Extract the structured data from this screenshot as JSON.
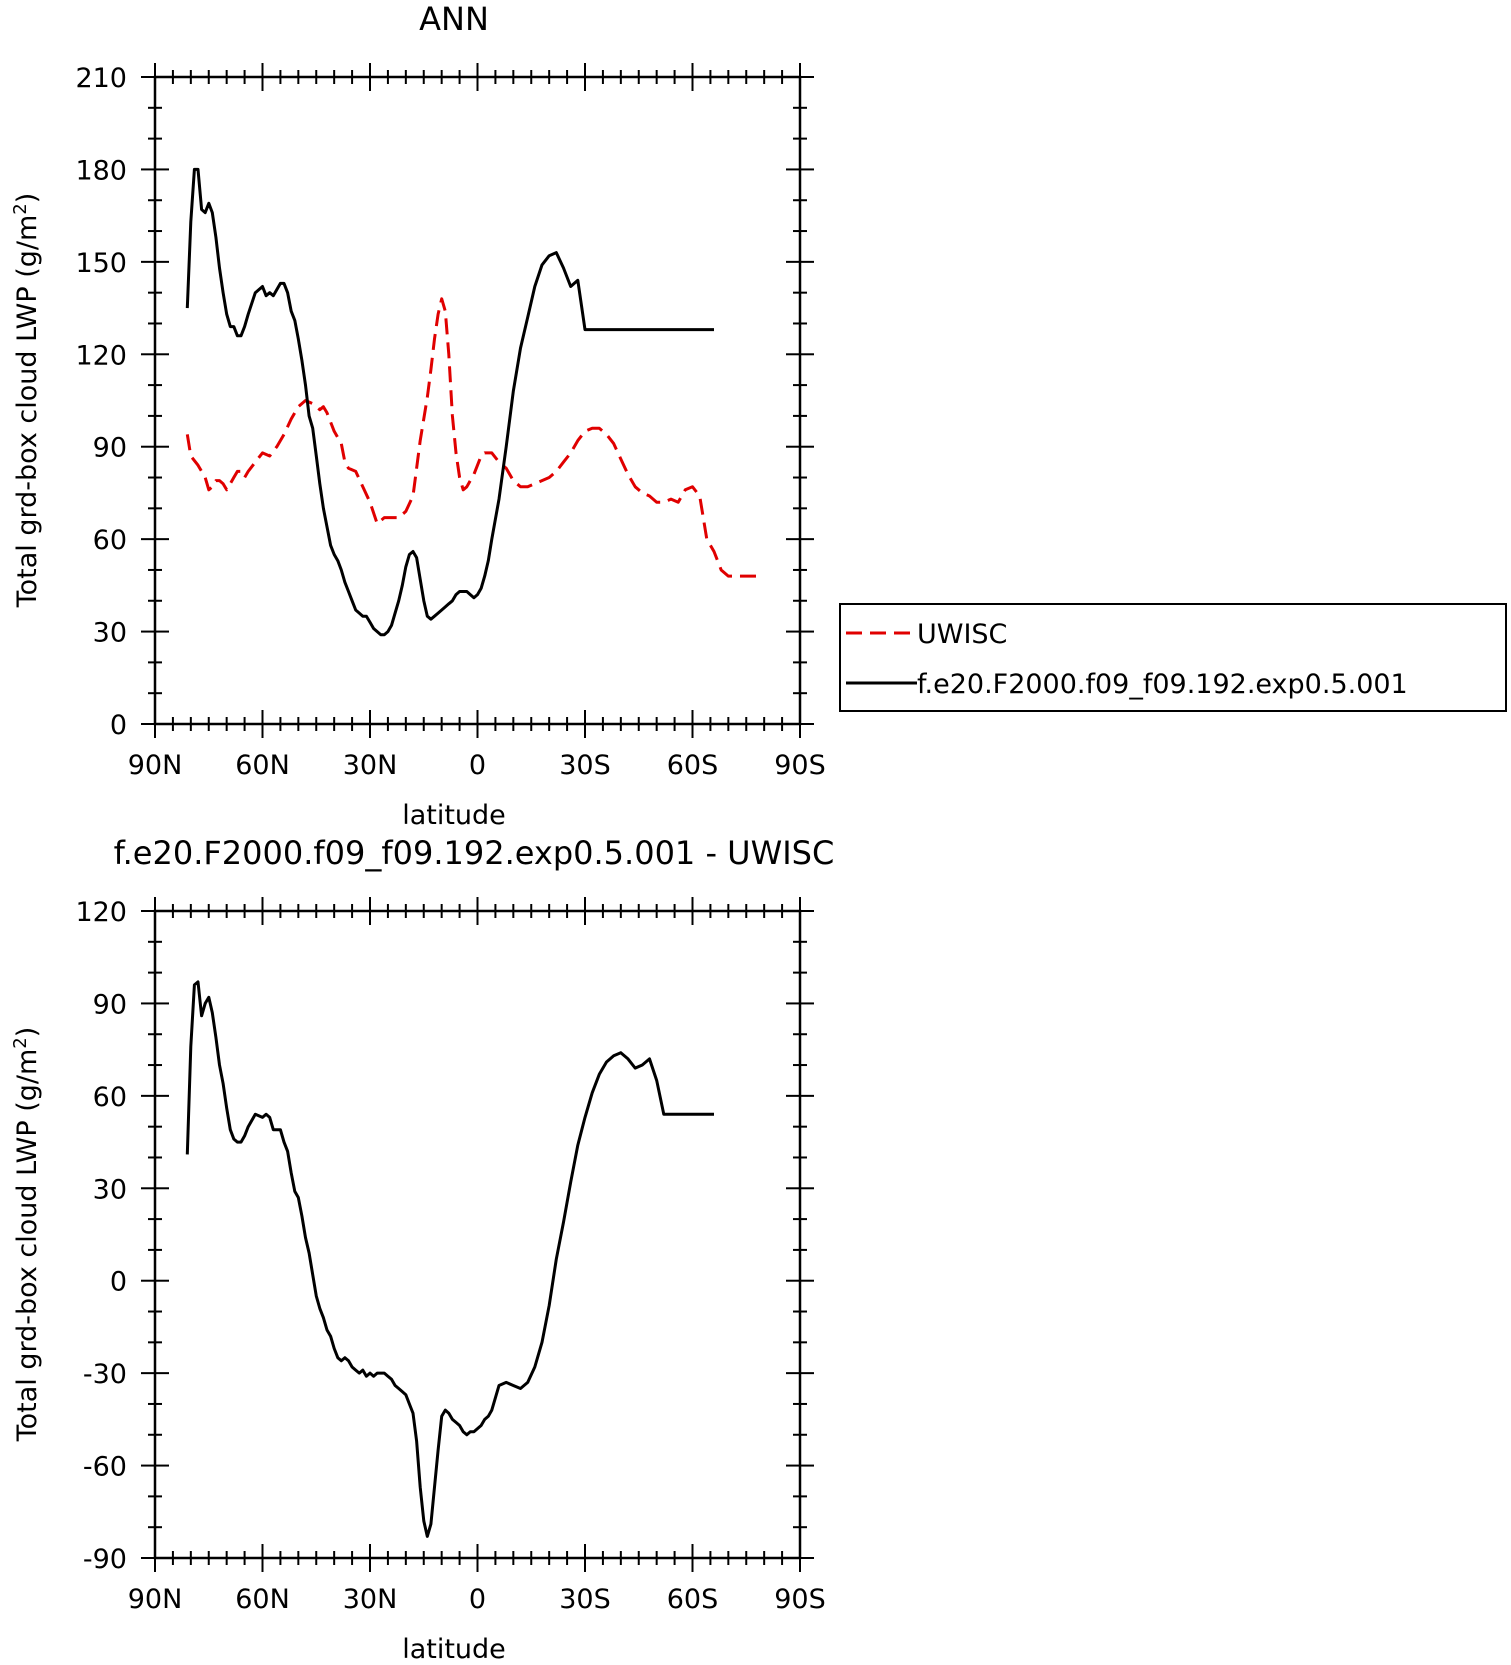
{
  "chart_data": [
    {
      "type": "line",
      "title": "ANN",
      "xlabel": "latitude",
      "ylabel": "Total grd-box cloud LWP (g/m²)",
      "ylabel_main": "Total grd-box cloud LWP (g/m",
      "ylabel_sup": "2",
      "ylabel_close": ")",
      "xlim": [
        90,
        -90
      ],
      "ylim": [
        0,
        210
      ],
      "xticks": [
        90,
        60,
        30,
        0,
        -30,
        -60,
        -90
      ],
      "xtick_labels": [
        "90N",
        "60N",
        "30N",
        "0",
        "30S",
        "60S",
        "90S"
      ],
      "yticks": [
        0,
        30,
        60,
        90,
        120,
        150,
        180,
        210
      ],
      "ytick_labels": [
        "0",
        "30",
        "60",
        "90",
        "120",
        "150",
        "180",
        "210"
      ],
      "legend_position": "right",
      "series": [
        {
          "name": "UWISC",
          "color": "#e00000",
          "style": "dashed",
          "x": [
            81,
            80,
            78,
            76,
            75,
            74,
            73,
            72,
            71,
            70,
            69,
            68,
            67,
            66,
            65,
            64,
            62,
            60,
            58,
            56,
            54,
            52,
            50,
            48,
            46,
            44,
            43,
            42,
            40,
            38,
            37,
            36,
            34,
            32,
            30,
            28,
            26,
            24,
            22,
            20,
            18,
            16,
            14,
            13,
            12,
            11,
            10,
            9,
            8,
            7,
            6,
            5,
            4,
            3,
            2,
            1,
            0,
            -1,
            -2,
            -4,
            -6,
            -8,
            -10,
            -12,
            -14,
            -16,
            -18,
            -20,
            -22,
            -24,
            -26,
            -28,
            -30,
            -32,
            -34,
            -36,
            -38,
            -40,
            -42,
            -44,
            -46,
            -48,
            -50,
            -52,
            -54,
            -56,
            -58,
            -60,
            -62,
            -64,
            -66,
            -68,
            -70,
            -71,
            -72,
            -73,
            -74,
            -75,
            -76,
            -77,
            -78
          ],
          "values": [
            94,
            87,
            84,
            80,
            76,
            77,
            79,
            79,
            78,
            76,
            78,
            80,
            82,
            82,
            80,
            82,
            85,
            88,
            87,
            90,
            94,
            99,
            103,
            105,
            104,
            102,
            103,
            101,
            95,
            91,
            85,
            83,
            82,
            77,
            72,
            65,
            67,
            67,
            67,
            69,
            74,
            92,
            106,
            115,
            125,
            133,
            138,
            134,
            120,
            100,
            88,
            80,
            76,
            77,
            79,
            81,
            84,
            87,
            88,
            88,
            85,
            83,
            79,
            77,
            77,
            78,
            79,
            80,
            82,
            85,
            88,
            92,
            95,
            96,
            96,
            94,
            91,
            86,
            81,
            77,
            75,
            74,
            72,
            72,
            73,
            72,
            76,
            77,
            74,
            60,
            56,
            50,
            48,
            48,
            48,
            48,
            48,
            48,
            48,
            48,
            48
          ]
        },
        {
          "name": "f.e20.F2000.f09_f09.192.exp0.5.001",
          "color": "#000000",
          "style": "solid",
          "x": [
            81,
            80,
            79,
            78,
            77,
            76,
            75,
            74,
            73,
            72,
            71,
            70,
            69,
            68,
            67,
            66,
            65,
            64,
            62,
            60,
            59,
            58,
            57,
            56,
            55,
            54,
            53,
            52,
            51,
            50,
            49,
            48,
            47,
            46,
            45,
            44,
            43,
            42,
            41,
            40,
            39,
            38,
            37,
            36,
            35,
            34,
            33,
            32,
            31,
            30,
            29,
            28,
            27,
            26,
            25,
            24,
            23,
            22,
            21,
            20,
            19,
            18,
            17,
            16,
            15,
            14,
            13,
            12,
            11,
            10,
            9,
            8,
            7,
            6,
            5,
            4,
            3,
            2,
            1,
            0,
            -1,
            -2,
            -3,
            -4,
            -6,
            -8,
            -10,
            -12,
            -14,
            -16,
            -18,
            -20,
            -22,
            -24,
            -26,
            -28,
            -30,
            -32,
            -34,
            -36,
            -38,
            -40,
            -42,
            -44,
            -46,
            -48,
            -50,
            -52,
            -54,
            -56,
            -58,
            -60,
            -62,
            -64,
            -65,
            -66
          ],
          "values": [
            135,
            163,
            180,
            180,
            167,
            166,
            169,
            166,
            158,
            148,
            140,
            133,
            129,
            129,
            126,
            126,
            129,
            133,
            140,
            142,
            139,
            140,
            139,
            141,
            143,
            143,
            140,
            134,
            131,
            125,
            118,
            110,
            100,
            96,
            87,
            78,
            70,
            64,
            58,
            55,
            53,
            50,
            46,
            43,
            40,
            37,
            36,
            35,
            35,
            33,
            31,
            30,
            29,
            29,
            30,
            32,
            36,
            40,
            45,
            51,
            55,
            56,
            54,
            47,
            40,
            35,
            34,
            35,
            36,
            37,
            38,
            39,
            40,
            42,
            43,
            43,
            43,
            42,
            41,
            42,
            44,
            48,
            53,
            60,
            73,
            90,
            108,
            122,
            132,
            142,
            149,
            152,
            153,
            148,
            142,
            144,
            128,
            128,
            128,
            128,
            128,
            128,
            128,
            128,
            128,
            128,
            128,
            128,
            128,
            128,
            128,
            128,
            128,
            128,
            128,
            128
          ]
        }
      ]
    },
    {
      "type": "line",
      "title": "f.e20.F2000.f09_f09.192.exp0.5.001 - UWISC",
      "xlabel": "latitude",
      "ylabel": "Total grd-box cloud LWP (g/m²)",
      "ylabel_main": "Total grd-box cloud LWP (g/m",
      "ylabel_sup": "2",
      "ylabel_close": ")",
      "xlim": [
        90,
        -90
      ],
      "ylim": [
        -90,
        120
      ],
      "xticks": [
        90,
        60,
        30,
        0,
        -30,
        -60,
        -90
      ],
      "xtick_labels": [
        "90N",
        "60N",
        "30N",
        "0",
        "30S",
        "60S",
        "90S"
      ],
      "yticks": [
        -90,
        -60,
        -30,
        0,
        30,
        60,
        90,
        120
      ],
      "ytick_labels": [
        "-90",
        "-60",
        "-30",
        "0",
        "30",
        "60",
        "90",
        "120"
      ],
      "series": [
        {
          "color": "#000000",
          "style": "solid",
          "x": [
            81,
            80,
            79,
            78,
            77,
            76,
            75,
            74,
            73,
            72,
            71,
            70,
            69,
            68,
            67,
            66,
            65,
            64,
            62,
            60,
            59,
            58,
            57,
            56,
            55,
            54,
            53,
            52,
            51,
            50,
            49,
            48,
            47,
            46,
            45,
            44,
            43,
            42,
            41,
            40,
            39,
            38,
            37,
            36,
            35,
            34,
            33,
            32,
            31,
            30,
            29,
            28,
            27,
            26,
            25,
            24,
            23,
            22,
            21,
            20,
            19,
            18,
            17,
            16,
            15,
            14,
            13,
            12,
            11,
            10,
            9,
            8,
            7,
            6,
            5,
            4,
            3,
            2,
            1,
            0,
            -1,
            -2,
            -3,
            -4,
            -6,
            -8,
            -10,
            -12,
            -14,
            -16,
            -18,
            -20,
            -22,
            -24,
            -26,
            -28,
            -30,
            -32,
            -34,
            -36,
            -38,
            -40,
            -42,
            -44,
            -46,
            -48,
            -50,
            -52,
            -54,
            -56,
            -58,
            -60,
            -62,
            -64,
            -65,
            -66
          ],
          "values": [
            41,
            76,
            96,
            97,
            86,
            90,
            92,
            87,
            79,
            70,
            64,
            56,
            49,
            46,
            45,
            45,
            47,
            50,
            54,
            53,
            54,
            53,
            49,
            49,
            49,
            45,
            42,
            35,
            29,
            27,
            21,
            14,
            9,
            2,
            -5,
            -9,
            -12,
            -16,
            -18,
            -22,
            -25,
            -26,
            -25,
            -26,
            -28,
            -29,
            -30,
            -29,
            -31,
            -30,
            -31,
            -30,
            -30,
            -30,
            -31,
            -32,
            -34,
            -35,
            -36,
            -37,
            -40,
            -43,
            -52,
            -67,
            -78,
            -83,
            -79,
            -67,
            -55,
            -44,
            -42,
            -43,
            -45,
            -46,
            -47,
            -49,
            -50,
            -49,
            -49,
            -48,
            -47,
            -45,
            -44,
            -42,
            -34,
            -33,
            -34,
            -35,
            -33,
            -28,
            -20,
            -8,
            7,
            19,
            32,
            44,
            53,
            61,
            67,
            71,
            73,
            74,
            72,
            69,
            70,
            72,
            65,
            54,
            54,
            54,
            54,
            54,
            54,
            54,
            54,
            54
          ]
        }
      ]
    }
  ]
}
